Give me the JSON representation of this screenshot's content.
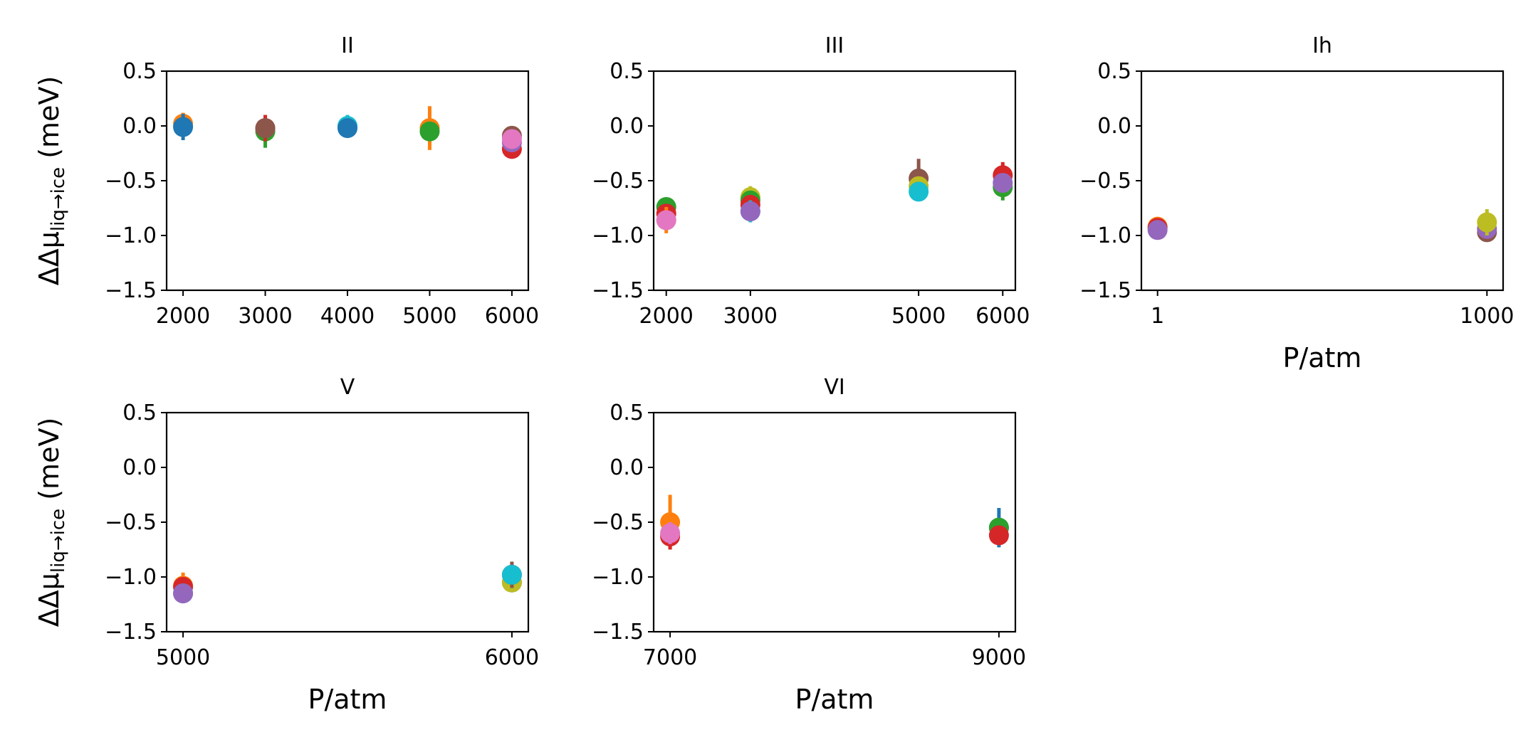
{
  "chart_data": [
    {
      "type": "scatter",
      "title": "II",
      "ylabel": "ΔΔμliq→ice (meV)",
      "xlabel": "",
      "x_ticks": [
        2000,
        3000,
        4000,
        5000,
        6000
      ],
      "x_tick_labels": [
        "2000",
        "3000",
        "4000",
        "5000",
        "6000"
      ],
      "xlim": [
        1800,
        6200
      ],
      "ylim": [
        -1.5,
        0.5
      ],
      "y_ticks": [
        0.5,
        0.0,
        -0.5,
        -1.0,
        -1.5
      ],
      "y_tick_labels": [
        "0.5",
        "0.0",
        "−0.5",
        "−1.0",
        "−1.5"
      ],
      "points": [
        {
          "x": 2000,
          "y": 0.02,
          "err": 0.1,
          "color": "#ff7f0e"
        },
        {
          "x": 2000,
          "y": -0.01,
          "err": 0.12,
          "color": "#1f77b4"
        },
        {
          "x": 3000,
          "y": -0.05,
          "err": 0.15,
          "color": "#2ca02c"
        },
        {
          "x": 3000,
          "y": -0.02,
          "err": 0.12,
          "color": "#d62728"
        },
        {
          "x": 3000,
          "y": -0.02,
          "err": 0.05,
          "color": "#8c564b"
        },
        {
          "x": 4000,
          "y": 0.0,
          "err": 0.1,
          "color": "#17becf"
        },
        {
          "x": 4000,
          "y": -0.02,
          "err": 0.05,
          "color": "#1f77b4"
        },
        {
          "x": 5000,
          "y": -0.02,
          "err": 0.2,
          "color": "#ff7f0e"
        },
        {
          "x": 5000,
          "y": -0.05,
          "err": 0.08,
          "color": "#2ca02c"
        },
        {
          "x": 6000,
          "y": -0.21,
          "err": 0.06,
          "color": "#d62728"
        },
        {
          "x": 6000,
          "y": -0.15,
          "err": 0.06,
          "color": "#9467bd"
        },
        {
          "x": 6000,
          "y": -0.09,
          "err": 0.06,
          "color": "#8c564b"
        },
        {
          "x": 6000,
          "y": -0.12,
          "err": 0.08,
          "color": "#e377c2"
        }
      ]
    },
    {
      "type": "scatter",
      "title": "III",
      "ylabel": "",
      "xlabel": "",
      "x_ticks": [
        2000,
        3000,
        5000,
        6000
      ],
      "x_tick_labels": [
        "2000",
        "3000",
        "5000",
        "6000"
      ],
      "xlim": [
        1850,
        6150
      ],
      "ylim": [
        -1.5,
        0.5
      ],
      "y_ticks": [
        0.5,
        0.0,
        -0.5,
        -1.0,
        -1.5
      ],
      "y_tick_labels": [
        "0.5",
        "0.0",
        "−0.5",
        "−1.0",
        "−1.5"
      ],
      "points": [
        {
          "x": 2000,
          "y": -0.74,
          "err": 0.08,
          "color": "#2ca02c"
        },
        {
          "x": 2000,
          "y": -0.8,
          "err": 0.06,
          "color": "#d62728"
        },
        {
          "x": 2000,
          "y": -0.86,
          "err": 0.12,
          "color": "#ff7f0e"
        },
        {
          "x": 2000,
          "y": -0.86,
          "err": 0.08,
          "color": "#e377c2"
        },
        {
          "x": 3000,
          "y": -0.65,
          "err": 0.1,
          "color": "#bcbd22"
        },
        {
          "x": 3000,
          "y": -0.68,
          "err": 0.08,
          "color": "#2ca02c"
        },
        {
          "x": 3000,
          "y": -0.72,
          "err": 0.08,
          "color": "#d62728"
        },
        {
          "x": 3000,
          "y": -0.78,
          "err": 0.1,
          "color": "#17becf"
        },
        {
          "x": 3000,
          "y": -0.78,
          "err": 0.06,
          "color": "#9467bd"
        },
        {
          "x": 5000,
          "y": -0.48,
          "err": 0.18,
          "color": "#8c564b"
        },
        {
          "x": 5000,
          "y": -0.55,
          "err": 0.06,
          "color": "#bcbd22"
        },
        {
          "x": 5000,
          "y": -0.6,
          "err": 0.06,
          "color": "#17becf"
        },
        {
          "x": 6000,
          "y": -0.45,
          "err": 0.12,
          "color": "#d62728"
        },
        {
          "x": 6000,
          "y": -0.56,
          "err": 0.12,
          "color": "#2ca02c"
        },
        {
          "x": 6000,
          "y": -0.52,
          "err": 0.06,
          "color": "#9467bd"
        }
      ]
    },
    {
      "type": "scatter",
      "title": "Ih",
      "ylabel": "",
      "xlabel": "P/atm",
      "x_ticks": [
        1,
        1000
      ],
      "x_tick_labels": [
        "1",
        "1000"
      ],
      "xlim": [
        -48,
        1049
      ],
      "ylim": [
        -1.5,
        0.5
      ],
      "y_ticks": [
        0.5,
        0.0,
        -0.5,
        -1.0,
        -1.5
      ],
      "y_tick_labels": [
        "0.5",
        "0.0",
        "−0.5",
        "−1.0",
        "−1.5"
      ],
      "points": [
        {
          "x": 1,
          "y": -0.92,
          "err": 0.04,
          "color": "#ff7f0e"
        },
        {
          "x": 1,
          "y": -0.93,
          "err": 0.04,
          "color": "#d62728"
        },
        {
          "x": 1,
          "y": -0.95,
          "err": 0.04,
          "color": "#9467bd"
        },
        {
          "x": 1000,
          "y": -0.97,
          "err": 0.05,
          "color": "#8c564b"
        },
        {
          "x": 1000,
          "y": -0.94,
          "err": 0.05,
          "color": "#9467bd"
        },
        {
          "x": 1000,
          "y": -0.88,
          "err": 0.12,
          "color": "#bcbd22"
        }
      ]
    },
    {
      "type": "scatter",
      "title": "V",
      "ylabel": "ΔΔμliq→ice (meV)",
      "xlabel": "P/atm",
      "x_ticks": [
        5000,
        6000
      ],
      "x_tick_labels": [
        "5000",
        "6000"
      ],
      "xlim": [
        4950,
        6050
      ],
      "ylim": [
        -1.5,
        0.5
      ],
      "y_ticks": [
        0.5,
        0.0,
        -0.5,
        -1.0,
        -1.5
      ],
      "y_tick_labels": [
        "0.5",
        "0.0",
        "−0.5",
        "−1.0",
        "−1.5"
      ],
      "points": [
        {
          "x": 5000,
          "y": -1.08,
          "err": 0.12,
          "color": "#ff7f0e"
        },
        {
          "x": 5000,
          "y": -1.09,
          "err": 0.05,
          "color": "#d62728"
        },
        {
          "x": 5000,
          "y": -1.15,
          "err": 0.05,
          "color": "#17becf"
        },
        {
          "x": 5000,
          "y": -1.15,
          "err": 0.04,
          "color": "#9467bd"
        },
        {
          "x": 6000,
          "y": -1.05,
          "err": 0.06,
          "color": "#8c564b"
        },
        {
          "x": 6000,
          "y": -1.05,
          "err": 0.06,
          "color": "#bcbd22"
        },
        {
          "x": 6000,
          "y": -0.98,
          "err": 0.12,
          "color": "#8c564b"
        },
        {
          "x": 6000,
          "y": -0.98,
          "err": 0.06,
          "color": "#17becf"
        }
      ]
    },
    {
      "type": "scatter",
      "title": "VI",
      "ylabel": "",
      "xlabel": "P/atm",
      "x_ticks": [
        7000,
        9000
      ],
      "x_tick_labels": [
        "7000",
        "9000"
      ],
      "xlim": [
        6900,
        9100
      ],
      "ylim": [
        -1.5,
        0.5
      ],
      "y_ticks": [
        0.5,
        0.0,
        -0.5,
        -1.0,
        -1.5
      ],
      "y_tick_labels": [
        "0.5",
        "0.0",
        "−0.5",
        "−1.0",
        "−1.5"
      ],
      "points": [
        {
          "x": 7000,
          "y": -0.5,
          "err": 0.25,
          "color": "#ff7f0e"
        },
        {
          "x": 7000,
          "y": -0.63,
          "err": 0.12,
          "color": "#d62728"
        },
        {
          "x": 7000,
          "y": -0.6,
          "err": 0.1,
          "color": "#e377c2"
        },
        {
          "x": 9000,
          "y": -0.55,
          "err": 0.18,
          "color": "#1f77b4"
        },
        {
          "x": 9000,
          "y": -0.55,
          "err": 0.08,
          "color": "#2ca02c"
        },
        {
          "x": 9000,
          "y": -0.62,
          "err": 0.06,
          "color": "#d62728"
        }
      ]
    }
  ]
}
